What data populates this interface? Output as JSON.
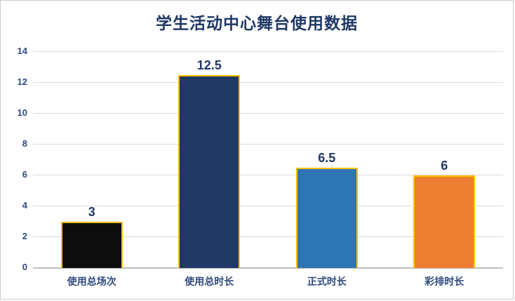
{
  "title": "学生活动中心舞台使用数据",
  "chart_data": {
    "type": "bar",
    "title": "学生活动中心舞台使用数据",
    "categories": [
      "使用总场次",
      "使用总时长",
      "正式时长",
      "彩排时长"
    ],
    "values": [
      3,
      12.5,
      6.5,
      6
    ],
    "value_labels": [
      "3",
      "12.5",
      "6.5",
      "6"
    ],
    "bar_colors": [
      "#0d0d0d",
      "#1f3864",
      "#2e75b6",
      "#ed7d31"
    ],
    "bar_border_color": "#ffc000",
    "xlabel": "",
    "ylabel": "",
    "ylim": [
      0,
      14
    ],
    "yticks": [
      0,
      2,
      4,
      6,
      8,
      10,
      12,
      14
    ],
    "grid": "horizontal",
    "gridline_color": "#d9d9d9",
    "label_color": "#1f3864",
    "legend_position": "none"
  }
}
